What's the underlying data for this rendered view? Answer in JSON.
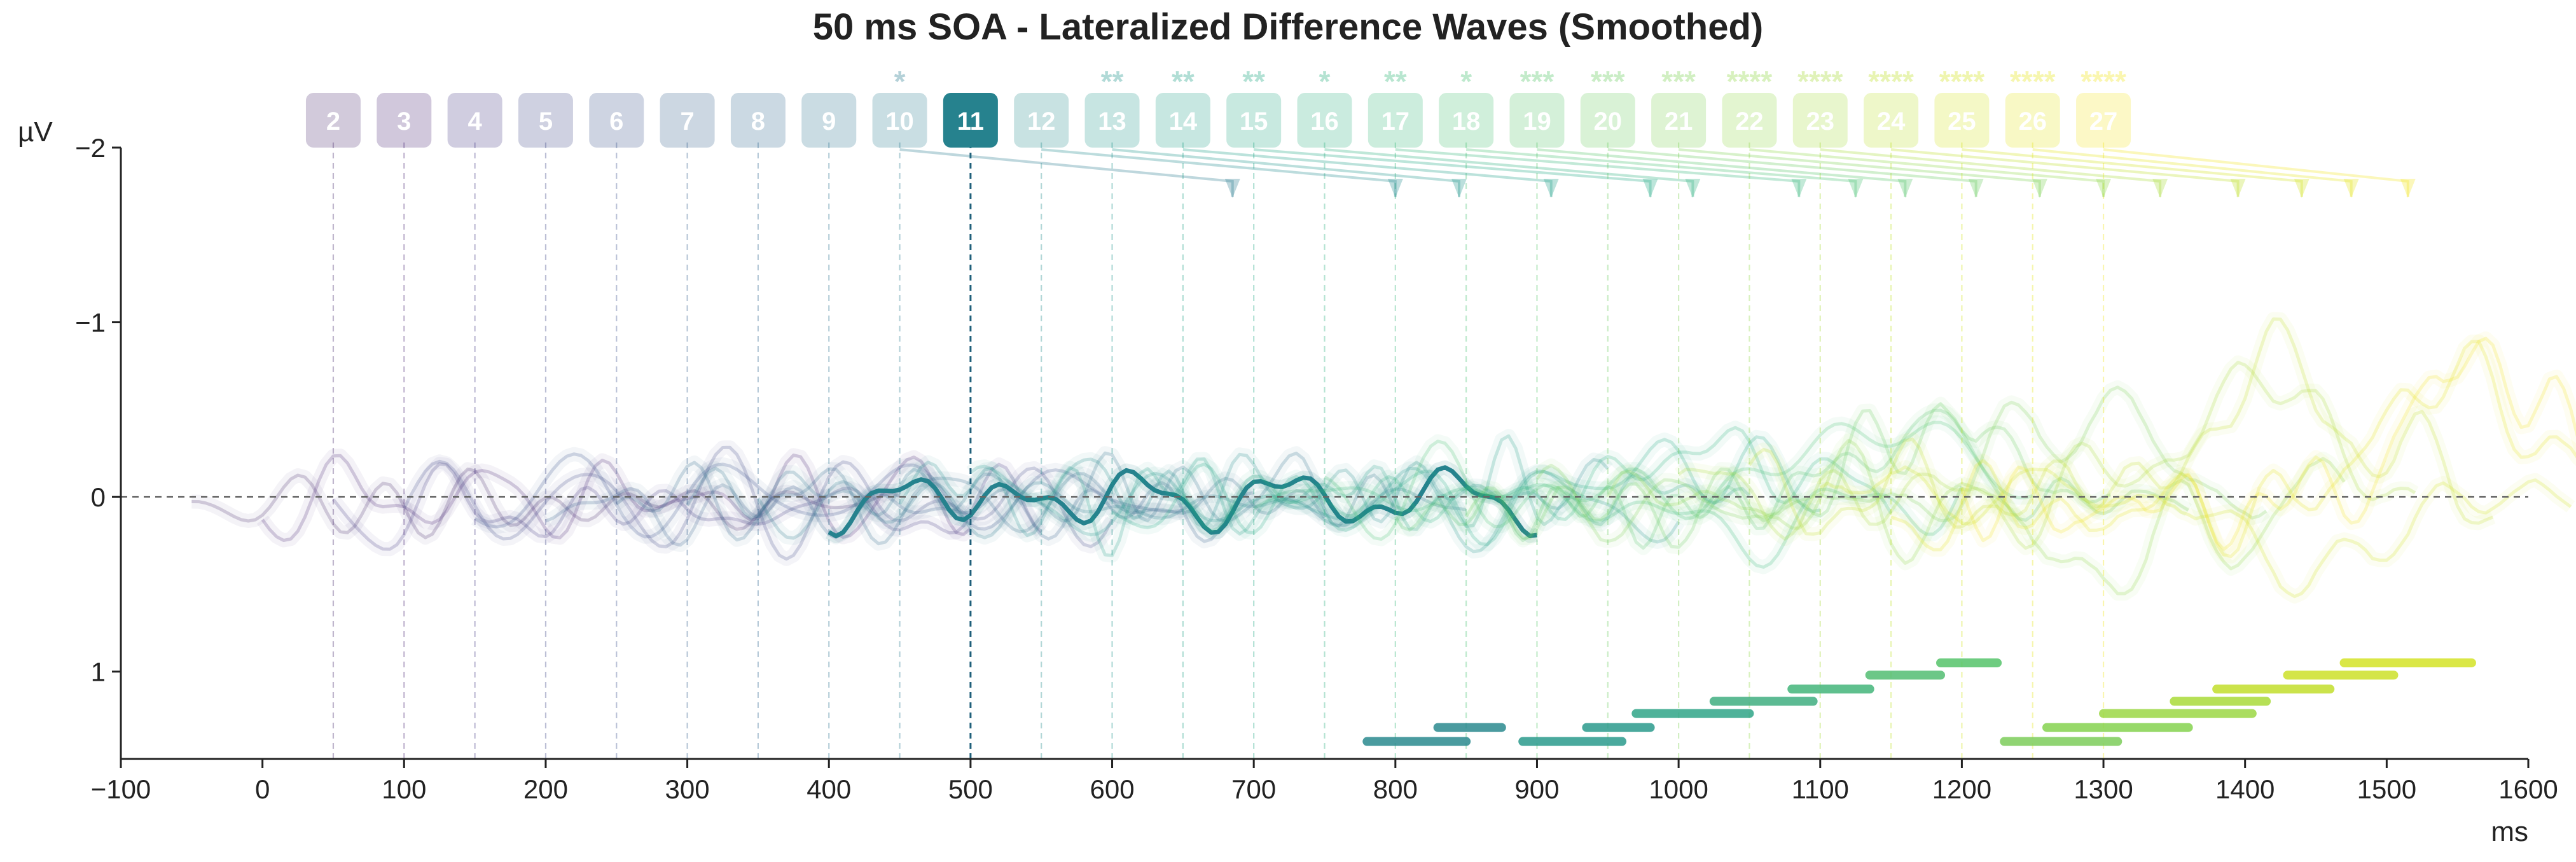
{
  "chart_data": {
    "type": "line",
    "title": "50 ms SOA - Lateralized Difference Waves (Smoothed)",
    "xlabel": "ms",
    "ylabel": "µV",
    "xlim": [
      -100,
      1600
    ],
    "ylim": [
      1.5,
      -2
    ],
    "y_inverted": true,
    "xticks": [
      "−100",
      "0",
      "100",
      "200",
      "300",
      "400",
      "500",
      "600",
      "700",
      "800",
      "900",
      "1000",
      "1100",
      "1200",
      "1300",
      "1400",
      "1500",
      "1600"
    ],
    "yticks": [
      {
        "value": -2,
        "label": "−2"
      },
      {
        "value": -1,
        "label": "−1"
      },
      {
        "value": 0,
        "label": "0"
      },
      {
        "value": 1,
        "label": "1"
      }
    ],
    "grid": false,
    "zero_line": true,
    "highlighted_series": "11",
    "series": [
      {
        "name": "2",
        "onset": 50,
        "color": "#4b2d6f",
        "stars": ""
      },
      {
        "name": "3",
        "onset": 100,
        "color": "#482475",
        "stars": ""
      },
      {
        "name": "4",
        "onset": 150,
        "color": "#443983",
        "stars": ""
      },
      {
        "name": "5",
        "onset": 200,
        "color": "#3f4788",
        "stars": ""
      },
      {
        "name": "6",
        "onset": 250,
        "color": "#3b528b",
        "stars": ""
      },
      {
        "name": "7",
        "onset": 300,
        "color": "#355f8d",
        "stars": ""
      },
      {
        "name": "8",
        "onset": 350,
        "color": "#31688e",
        "stars": ""
      },
      {
        "name": "9",
        "onset": 400,
        "color": "#2c728e",
        "stars": ""
      },
      {
        "name": "10",
        "onset": 450,
        "color": "#287c8e",
        "stars": "*"
      },
      {
        "name": "11",
        "onset": 500,
        "color": "#26828e",
        "stars": ""
      },
      {
        "name": "12",
        "onset": 550,
        "color": "#228c8d",
        "stars": ""
      },
      {
        "name": "13",
        "onset": 600,
        "color": "#1f968b",
        "stars": "**"
      },
      {
        "name": "14",
        "onset": 650,
        "color": "#1fa088",
        "stars": "**"
      },
      {
        "name": "15",
        "onset": 700,
        "color": "#22a884",
        "stars": "**"
      },
      {
        "name": "16",
        "onset": 750,
        "color": "#2ab07f",
        "stars": "*"
      },
      {
        "name": "17",
        "onset": 800,
        "color": "#35b779",
        "stars": "**"
      },
      {
        "name": "18",
        "onset": 850,
        "color": "#44bf70",
        "stars": "*"
      },
      {
        "name": "19",
        "onset": 900,
        "color": "#54c568",
        "stars": "***"
      },
      {
        "name": "20",
        "onset": 950,
        "color": "#66cb5d",
        "stars": "***"
      },
      {
        "name": "21",
        "onset": 1000,
        "color": "#7ad151",
        "stars": "***"
      },
      {
        "name": "22",
        "onset": 1050,
        "color": "#8fd744",
        "stars": "****"
      },
      {
        "name": "23",
        "onset": 1100,
        "color": "#a5db36",
        "stars": "****"
      },
      {
        "name": "24",
        "onset": 1150,
        "color": "#bddf26",
        "stars": "****"
      },
      {
        "name": "25",
        "onset": 1200,
        "color": "#d2e21b",
        "stars": "****"
      },
      {
        "name": "26",
        "onset": 1250,
        "color": "#e5e419",
        "stars": "****"
      },
      {
        "name": "27",
        "onset": 1300,
        "color": "#f2e51d",
        "stars": "****"
      }
    ],
    "arrows": [
      {
        "from": 450,
        "to": 685
      },
      {
        "from": 550,
        "to": 800
      },
      {
        "from": 600,
        "to": 845
      },
      {
        "from": 650,
        "to": 910
      },
      {
        "from": 700,
        "to": 980
      },
      {
        "from": 750,
        "to": 1010
      },
      {
        "from": 800,
        "to": 1085
      },
      {
        "from": 850,
        "to": 1125
      },
      {
        "from": 900,
        "to": 1160
      },
      {
        "from": 950,
        "to": 1210
      },
      {
        "from": 1000,
        "to": 1255
      },
      {
        "from": 1050,
        "to": 1300
      },
      {
        "from": 1100,
        "to": 1340
      },
      {
        "from": 1150,
        "to": 1395
      },
      {
        "from": 1200,
        "to": 1440
      },
      {
        "from": 1250,
        "to": 1475
      },
      {
        "from": 1300,
        "to": 1515
      }
    ],
    "significance_bars": [
      {
        "series": "17",
        "start": 780,
        "end": 850,
        "y": 1.4,
        "color": "#2a8a8e"
      },
      {
        "series": "18",
        "start": 830,
        "end": 875,
        "y": 1.32,
        "color": "#2a8a8e"
      },
      {
        "series": "19",
        "start": 890,
        "end": 960,
        "y": 1.4,
        "color": "#2a9a8c"
      },
      {
        "series": "20",
        "start": 935,
        "end": 980,
        "y": 1.32,
        "color": "#2a9a8c"
      },
      {
        "series": "21",
        "start": 970,
        "end": 1050,
        "y": 1.24,
        "color": "#2fa587"
      },
      {
        "series": "22",
        "start": 1025,
        "end": 1095,
        "y": 1.17,
        "color": "#3fae80"
      },
      {
        "series": "23",
        "start": 1080,
        "end": 1135,
        "y": 1.1,
        "color": "#43b57a"
      },
      {
        "series": "24",
        "start": 1135,
        "end": 1185,
        "y": 1.02,
        "color": "#52bd72"
      },
      {
        "series": "25",
        "start": 1185,
        "end": 1225,
        "y": 0.95,
        "color": "#55c36a"
      },
      {
        "series": "26",
        "start": 1230,
        "end": 1310,
        "y": 1.4,
        "color": "#7dcc5a"
      },
      {
        "series": "27",
        "start": 1260,
        "end": 1360,
        "y": 1.32,
        "color": "#85d24f"
      },
      {
        "series": "28",
        "start": 1300,
        "end": 1405,
        "y": 1.24,
        "color": "#9bd744"
      },
      {
        "series": "29",
        "start": 1350,
        "end": 1415,
        "y": 1.17,
        "color": "#a9da38"
      },
      {
        "series": "30",
        "start": 1380,
        "end": 1460,
        "y": 1.1,
        "color": "#c2de2c"
      },
      {
        "series": "31",
        "start": 1430,
        "end": 1505,
        "y": 1.02,
        "color": "#cde129"
      },
      {
        "series": "32",
        "start": 1470,
        "end": 1560,
        "y": 0.95,
        "color": "#d3e326"
      }
    ]
  }
}
